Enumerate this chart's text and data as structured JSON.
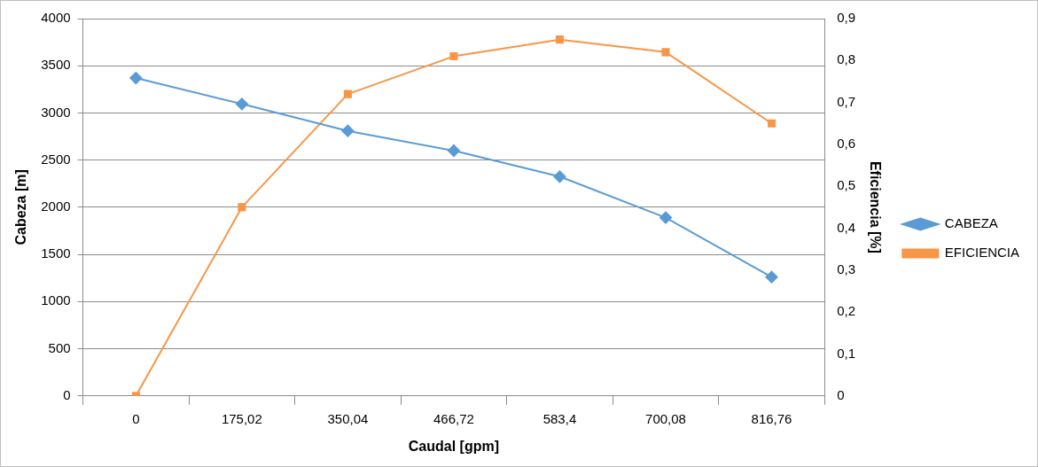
{
  "chart_data": {
    "type": "line",
    "xlabel": "Caudal [gpm]",
    "ylabel": "Cabeza [m]",
    "y2label": "Eficiencia [%]",
    "categories": [
      "0",
      "175,02",
      "350,04",
      "466,72",
      "583,4",
      "700,08",
      "816,76"
    ],
    "series": [
      {
        "name": "CABEZA",
        "color": "#5b9bd5",
        "marker": "diamond",
        "values": [
          3370,
          3095,
          2810,
          2600,
          2325,
          1890,
          1260
        ]
      },
      {
        "name": "EFICIENCIA",
        "color": "#f79646",
        "marker": "square",
        "axis": "y2",
        "values": [
          0,
          0.45,
          0.72,
          0.81,
          0.85,
          0.82,
          0.65
        ]
      }
    ],
    "ylim": [
      0,
      4000
    ],
    "yticks": [
      0,
      500,
      1000,
      1500,
      2000,
      2500,
      3000,
      3500,
      4000
    ],
    "y2lim": [
      0,
      0.9
    ],
    "y2ticks": [
      0,
      {
        "value": 0.1,
        "label": "0,1"
      },
      {
        "value": 0.2,
        "label": "0,2"
      },
      {
        "value": 0.3,
        "label": "0,3"
      },
      {
        "value": 0.4,
        "label": "0,4"
      },
      {
        "value": 0.5,
        "label": "0,5"
      },
      {
        "value": 0.6,
        "label": "0,6"
      },
      {
        "value": 0.7,
        "label": "0,7"
      },
      {
        "value": 0.8,
        "label": "0,8"
      },
      {
        "value": 0.9,
        "label": "0,9"
      }
    ],
    "grid": "y",
    "legend": "right",
    "line_style": "solid"
  }
}
